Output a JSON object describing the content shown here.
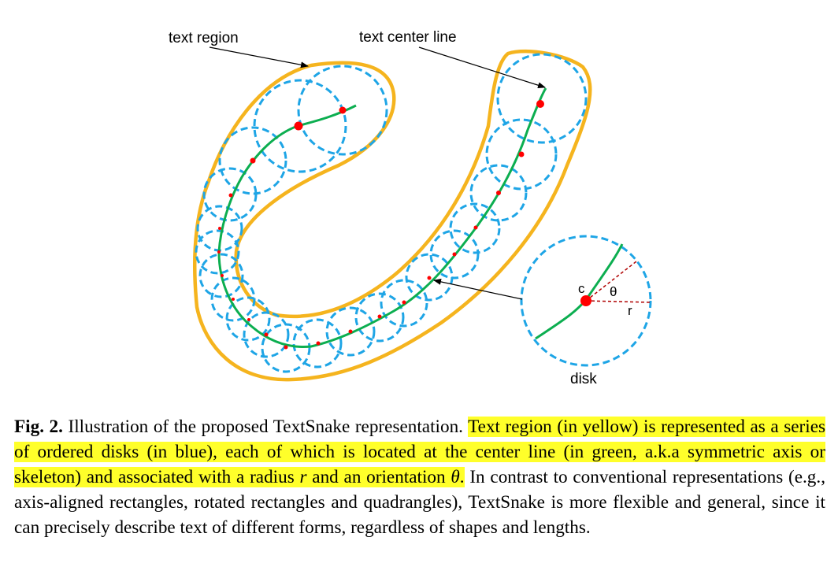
{
  "figure": {
    "labels": {
      "text_region": "text region",
      "text_center_line": "text center line",
      "disk": "disk",
      "c": "c",
      "theta": "θ",
      "r": "r"
    },
    "colors": {
      "text_region": "#f5b41e",
      "disks": "#1ea5e6",
      "center_line": "#0cae50",
      "points": "#ff0000",
      "radius_lines": "#b00000"
    }
  },
  "caption": {
    "fig_label": "Fig. 2.",
    "plain_1": " Illustration of the proposed TextSnake representation. ",
    "hl_1": "Text region (in yellow) is represented as a series of ordered disks (in blue), each of which is located at the center line (in green, a.k.a symmetric axis or skeleton) and associated with a radius ",
    "hl_r": "r",
    "hl_2": " and an orientation ",
    "hl_theta": "θ",
    "hl_3": ".",
    "plain_2": " In contrast to conventional representations (e.g., axis-aligned rectangles, rotated rectangles and quadrangles), TextSnake is more flexible and general, since it can precisely describe text of different forms, regardless of shapes and lengths."
  }
}
